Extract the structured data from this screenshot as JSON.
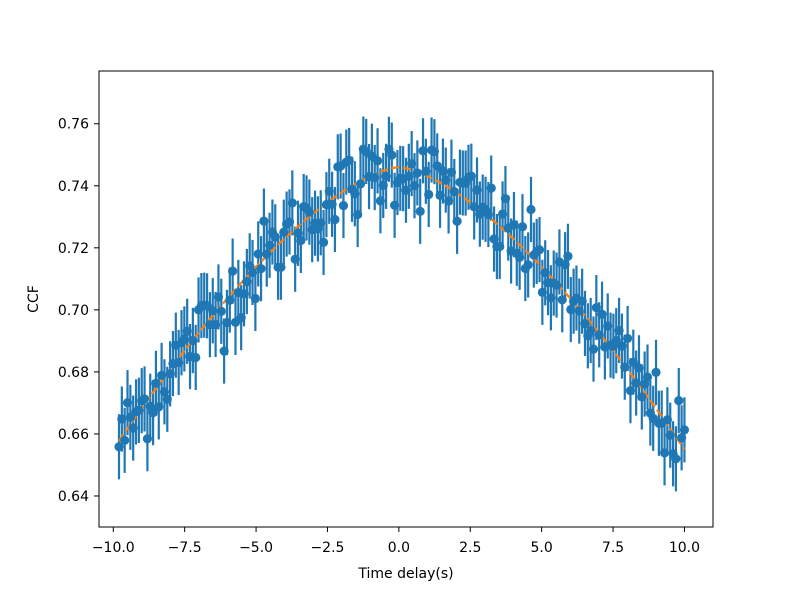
{
  "chart_data": {
    "type": "scatter",
    "title": "",
    "xlabel": "Time delay(s)",
    "ylabel": "CCF",
    "xlim": [
      -10.5,
      11.0
    ],
    "ylim": [
      0.63,
      0.777
    ],
    "x_ticks": [
      -10,
      -7.5,
      -5,
      -2.5,
      0,
      2.5,
      5,
      7.5,
      10
    ],
    "x_tick_labels": [
      "−10.0",
      "−7.5",
      "−5.0",
      "−2.5",
      "0.0",
      "2.5",
      "5.0",
      "7.5",
      "10.0"
    ],
    "y_ticks": [
      0.64,
      0.66,
      0.68,
      0.7,
      0.72,
      0.74,
      0.76
    ],
    "y_tick_labels": [
      "0.64",
      "0.66",
      "0.68",
      "0.70",
      "0.72",
      "0.74",
      "0.76"
    ],
    "grid": false,
    "colors": {
      "data": "#1f77b4",
      "fit": "#ff7f0e"
    },
    "series": [
      {
        "kind": "errorbar",
        "x_range": [
          -9.8,
          10.0
        ],
        "n_points": 200,
        "yerr": 0.0105,
        "noise": 0.006,
        "model": {
          "peak_x": 0.0,
          "peak_y": 0.746,
          "edge_drop_left": 0.091,
          "edge_drop_right": 0.091,
          "exponent": 1.5
        }
      },
      {
        "kind": "fit",
        "linestyle": "dashed",
        "x_range": [
          -9.8,
          10.0
        ],
        "model": {
          "peak_x": 0.0,
          "peak_y": 0.746,
          "edge_drop_left": 0.091,
          "edge_drop_right": 0.091,
          "exponent": 1.5
        }
      }
    ]
  }
}
